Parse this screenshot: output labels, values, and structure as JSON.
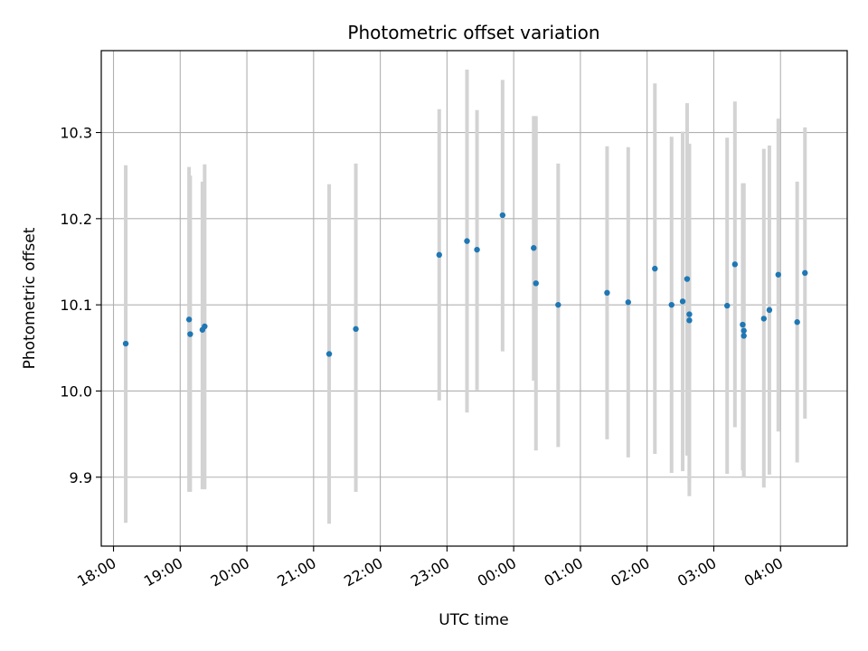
{
  "chart_data": {
    "type": "scatter",
    "title": "Photometric offset variation",
    "xlabel": "UTC time",
    "ylabel": "Photometric offset",
    "grid": true,
    "x_ticks": [
      "18:00",
      "19:00",
      "20:00",
      "21:00",
      "22:00",
      "23:00",
      "00:00",
      "01:00",
      "02:00",
      "03:00",
      "04:00"
    ],
    "y_ticks": [
      "9.9",
      "10.0",
      "10.1",
      "10.2",
      "10.3"
    ],
    "xlim": [
      "17:49",
      "05:00"
    ],
    "ylim": [
      9.82,
      10.395
    ],
    "colors": {
      "point": "#1f77b4",
      "errorbar": "#d3d3d3",
      "grid": "#b0b0b0"
    },
    "series": [
      {
        "points": [
          {
            "x": "18:11",
            "y": 10.055,
            "lo": 9.847,
            "hi": 10.262
          },
          {
            "x": "19:08",
            "y": 10.083,
            "lo": 9.883,
            "hi": 10.26
          },
          {
            "x": "19:09",
            "y": 10.066,
            "lo": 9.883,
            "hi": 10.25
          },
          {
            "x": "19:20",
            "y": 10.071,
            "lo": 9.886,
            "hi": 10.243
          },
          {
            "x": "19:22",
            "y": 10.075,
            "lo": 9.886,
            "hi": 10.263
          },
          {
            "x": "21:14",
            "y": 10.043,
            "lo": 9.846,
            "hi": 10.24
          },
          {
            "x": "21:38",
            "y": 10.072,
            "lo": 9.883,
            "hi": 10.264
          },
          {
            "x": "22:53",
            "y": 10.158,
            "lo": 9.989,
            "hi": 10.327
          },
          {
            "x": "23:18",
            "y": 10.174,
            "lo": 9.975,
            "hi": 10.373
          },
          {
            "x": "23:27",
            "y": 10.164,
            "lo": 10.001,
            "hi": 10.326
          },
          {
            "x": "23:50",
            "y": 10.204,
            "lo": 10.046,
            "hi": 10.361
          },
          {
            "x": "00:18",
            "y": 10.166,
            "lo": 10.012,
            "hi": 10.319
          },
          {
            "x": "00:20",
            "y": 10.125,
            "lo": 9.931,
            "hi": 10.319
          },
          {
            "x": "00:40",
            "y": 10.1,
            "lo": 9.935,
            "hi": 10.264
          },
          {
            "x": "01:24",
            "y": 10.114,
            "lo": 9.944,
            "hi": 10.284
          },
          {
            "x": "01:43",
            "y": 10.103,
            "lo": 9.923,
            "hi": 10.283
          },
          {
            "x": "02:07",
            "y": 10.142,
            "lo": 9.927,
            "hi": 10.357
          },
          {
            "x": "02:22",
            "y": 10.1,
            "lo": 9.905,
            "hi": 10.295
          },
          {
            "x": "02:32",
            "y": 10.104,
            "lo": 9.907,
            "hi": 10.301
          },
          {
            "x": "02:36",
            "y": 10.13,
            "lo": 9.925,
            "hi": 10.334
          },
          {
            "x": "02:38",
            "y": 10.089,
            "lo": 9.893,
            "hi": 10.286
          },
          {
            "x": "02:38",
            "y": 10.082,
            "lo": 9.878,
            "hi": 10.287
          },
          {
            "x": "03:12",
            "y": 10.099,
            "lo": 9.904,
            "hi": 10.294
          },
          {
            "x": "03:19",
            "y": 10.147,
            "lo": 9.958,
            "hi": 10.336
          },
          {
            "x": "03:26",
            "y": 10.077,
            "lo": 9.908,
            "hi": 10.241
          },
          {
            "x": "03:27",
            "y": 10.07,
            "lo": 9.9,
            "hi": 10.241
          },
          {
            "x": "03:27",
            "y": 10.064,
            "lo": 9.9,
            "hi": 10.241
          },
          {
            "x": "03:45",
            "y": 10.084,
            "lo": 9.888,
            "hi": 10.281
          },
          {
            "x": "03:50",
            "y": 10.094,
            "lo": 9.903,
            "hi": 10.285
          },
          {
            "x": "03:58",
            "y": 10.135,
            "lo": 9.953,
            "hi": 10.316
          },
          {
            "x": "04:15",
            "y": 10.08,
            "lo": 9.917,
            "hi": 10.243
          },
          {
            "x": "04:22",
            "y": 10.137,
            "lo": 9.968,
            "hi": 10.306
          }
        ]
      }
    ]
  }
}
